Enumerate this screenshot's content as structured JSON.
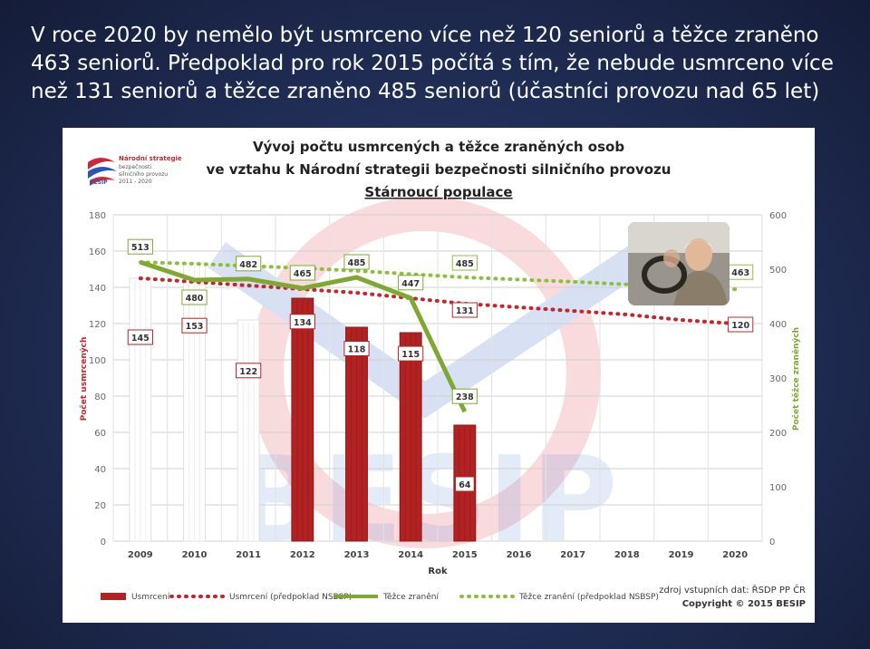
{
  "slide": {
    "caption": "V roce 2020 by nemělo být usmrceno více než 120 seniorů a těžce zraněno 463 seniorů. Předpoklad pro rok 2015 počítá s tím, že nebude usmrceno více než 131 seniorů a těžce zraněno 485 seniorů (účastníci provozu nad 65 let)"
  },
  "logo": {
    "line1": "Národní strategie",
    "line2": "bezpečnosti",
    "line3": "silničního provozu",
    "line4": "2011 - 2020",
    "brand": "BESIP"
  },
  "watermark": "BESIP",
  "footer": {
    "source": "zdroj vstupních dat: ŘSDP PP ČR",
    "copyright": "Copyright © 2015 BESIP"
  },
  "chart_data": {
    "type": "bar",
    "title_line1": "Vývoj počtu usmrcených a těžce zraněných osob",
    "title_line2": "ve vztahu k Národní strategii bezpečnosti silničního provozu",
    "title_line3": "Stárnoucí populace",
    "xlabel": "Rok",
    "ylabel_left": "Počet usmrcených",
    "ylabel_right": "Počet těžce zraněných",
    "ylim_left": [
      0,
      180
    ],
    "ylim_right": [
      0,
      600
    ],
    "yticks_left": [
      "0",
      "20",
      "40",
      "60",
      "80",
      "100",
      "120",
      "140",
      "160",
      "180"
    ],
    "yticks_right": [
      "0",
      "100",
      "200",
      "300",
      "400",
      "500",
      "600"
    ],
    "categories": [
      "2009",
      "2010",
      "2011",
      "2012",
      "2013",
      "2014",
      "2015",
      "2016",
      "2017",
      "2018",
      "2019",
      "2020"
    ],
    "grid": true,
    "legend_position": "bottom",
    "series": [
      {
        "name": "Usmrcení",
        "kind": "bar",
        "axis": "left",
        "color": "#b22222",
        "values": [
          145,
          153,
          122,
          134,
          118,
          115,
          64,
          null,
          null,
          null,
          null,
          null
        ],
        "labels": [
          "145",
          "153",
          "122",
          "134",
          "118",
          "115",
          "64",
          "",
          "",
          "",
          "",
          ""
        ],
        "hollow": [
          true,
          true,
          true,
          false,
          false,
          false,
          false
        ]
      },
      {
        "name": "Usmrcení (předpoklad NSBSP)",
        "kind": "dotted-line",
        "axis": "left",
        "color": "#c0282e",
        "values": [
          145,
          143,
          141,
          139,
          137,
          134,
          131,
          129,
          127,
          125,
          122,
          120
        ],
        "labels": [
          "",
          "",
          "",
          "",
          "",
          "",
          "131",
          "",
          "",
          "",
          "",
          "120"
        ]
      },
      {
        "name": "Těžce zranění",
        "kind": "line",
        "axis": "right",
        "color": "#7fa832",
        "values": [
          513,
          480,
          482,
          465,
          485,
          447,
          238,
          null,
          null,
          null,
          null,
          null
        ],
        "labels": [
          "513",
          "480",
          "482",
          "465",
          "485",
          "447",
          "238",
          "",
          "",
          "",
          "",
          ""
        ]
      },
      {
        "name": "Těžce zranění (předpoklad NSBSP)",
        "kind": "dotted-line",
        "axis": "right",
        "color": "#8cbf3c",
        "values": [
          513,
          510,
          506,
          502,
          497,
          491,
          485,
          481,
          477,
          472,
          468,
          463
        ],
        "labels": [
          "",
          "",
          "",
          "",
          "",
          "",
          "485",
          "",
          "",
          "",
          "",
          "463"
        ]
      }
    ]
  }
}
